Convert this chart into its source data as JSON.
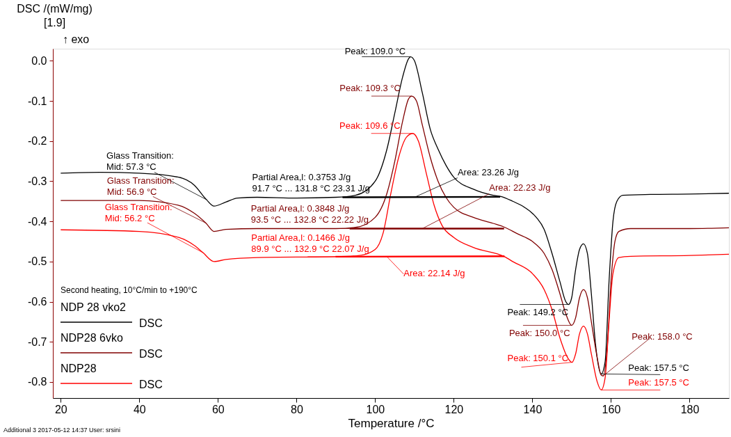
{
  "chart_data": {
    "type": "line",
    "xlabel": "Temperature /°C",
    "ylabel": "DSC /(mW/mg)\n[1.9]",
    "xlim": [
      18,
      190
    ],
    "ylim": [
      -0.84,
      0.03
    ],
    "xticks": [
      20,
      40,
      60,
      80,
      100,
      120,
      140,
      160,
      180
    ],
    "yticks": [
      {
        "value": 0,
        "label": "0.0"
      },
      -0.1,
      -0.2,
      -0.3,
      -0.4,
      -0.5,
      -0.6,
      -0.7,
      -0.8
    ],
    "legend_title": "Second heating, 10°C/min to +190°C",
    "series": [
      {
        "name": "NDP 28 vko2\nDSC",
        "color": "#000000",
        "x": [
          20,
          30,
          40,
          50,
          54,
          57,
          59,
          62,
          65,
          70,
          80,
          90,
          95,
          100,
          103,
          105,
          107,
          108.5,
          109,
          110,
          112,
          114,
          116,
          118,
          120,
          125,
          130,
          132,
          135,
          138,
          141,
          143,
          145,
          147,
          148.5,
          149.2,
          150,
          151,
          152,
          153,
          154,
          155,
          156,
          157.5,
          158.5,
          159.5,
          160.5,
          161.5,
          163,
          170,
          180,
          190
        ],
        "values": [
          -0.28,
          -0.278,
          -0.28,
          -0.29,
          -0.31,
          -0.345,
          -0.362,
          -0.352,
          -0.342,
          -0.34,
          -0.342,
          -0.34,
          -0.335,
          -0.3,
          -0.22,
          -0.13,
          -0.04,
          0.005,
          0.01,
          0.0,
          -0.08,
          -0.17,
          -0.22,
          -0.26,
          -0.29,
          -0.32,
          -0.335,
          -0.338,
          -0.35,
          -0.365,
          -0.39,
          -0.42,
          -0.48,
          -0.55,
          -0.6,
          -0.607,
          -0.59,
          -0.52,
          -0.47,
          -0.456,
          -0.48,
          -0.58,
          -0.7,
          -0.78,
          -0.75,
          -0.55,
          -0.4,
          -0.35,
          -0.335,
          -0.333,
          -0.332,
          -0.33
        ]
      },
      {
        "name": "NDP28 6vko\nDSC",
        "color": "#800000",
        "x": [
          20,
          40,
          50,
          54,
          57,
          59,
          62,
          70,
          90,
          95,
          100,
          103,
          105,
          107,
          108.5,
          109.3,
          110.5,
          112,
          114,
          116,
          118,
          120,
          125,
          130,
          133,
          136,
          140,
          143,
          145,
          147,
          148.5,
          150,
          151,
          152,
          153,
          154,
          155,
          156.5,
          157.5,
          158,
          159,
          160,
          161,
          162,
          165,
          180,
          190
        ],
        "values": [
          -0.348,
          -0.348,
          -0.36,
          -0.38,
          -0.405,
          -0.425,
          -0.42,
          -0.418,
          -0.418,
          -0.415,
          -0.39,
          -0.33,
          -0.25,
          -0.15,
          -0.095,
          -0.088,
          -0.1,
          -0.16,
          -0.24,
          -0.3,
          -0.34,
          -0.365,
          -0.39,
          -0.405,
          -0.415,
          -0.43,
          -0.45,
          -0.48,
          -0.52,
          -0.58,
          -0.63,
          -0.659,
          -0.64,
          -0.59,
          -0.57,
          -0.59,
          -0.65,
          -0.74,
          -0.783,
          -0.785,
          -0.72,
          -0.55,
          -0.45,
          -0.425,
          -0.418,
          -0.418,
          -0.416
        ]
      },
      {
        "name": "NDP28\nDSC",
        "color": "#ff0000",
        "x": [
          20,
          40,
          50,
          54,
          56.2,
          59,
          62,
          70,
          90,
          96,
          100,
          102,
          104,
          106,
          108,
          109.6,
          111,
          113,
          115,
          117,
          120,
          125,
          132.9,
          135,
          140,
          143,
          145,
          147,
          149,
          150.1,
          151,
          152,
          153,
          154,
          155,
          156.5,
          157.5,
          158.5,
          159.5,
          160.5,
          162,
          165,
          180,
          190
        ],
        "values": [
          -0.421,
          -0.425,
          -0.44,
          -0.46,
          -0.478,
          -0.5,
          -0.495,
          -0.49,
          -0.488,
          -0.485,
          -0.47,
          -0.43,
          -0.33,
          -0.24,
          -0.19,
          -0.181,
          -0.2,
          -0.28,
          -0.36,
          -0.41,
          -0.44,
          -0.465,
          -0.488,
          -0.5,
          -0.53,
          -0.57,
          -0.62,
          -0.69,
          -0.74,
          -0.751,
          -0.73,
          -0.68,
          -0.661,
          -0.68,
          -0.73,
          -0.8,
          -0.82,
          -0.79,
          -0.65,
          -0.53,
          -0.49,
          -0.487,
          -0.485,
          -0.482
        ]
      },
      {
        "type": "line",
        "color": "#000000",
        "x": [
          91.7,
          131.8
        ],
        "values": [
          -0.34,
          -0.339
        ]
      },
      {
        "type": "line",
        "color": "#800000",
        "x": [
          93.5,
          132.8
        ],
        "values": [
          -0.418,
          -0.418
        ]
      },
      {
        "type": "line",
        "color": "#ff0000",
        "x": [
          89.9,
          132.9
        ],
        "values": [
          -0.488,
          -0.487
        ]
      }
    ],
    "annotations": [
      {
        "text": "Peak: 109.0 °C",
        "x": 109.0,
        "y": 0.01
      },
      {
        "text": "Peak: 109.3 °C",
        "x": 109.3,
        "y": -0.088
      },
      {
        "text": "Peak: 109.6 °C",
        "x": 109.6,
        "y": -0.181
      },
      {
        "text": "Glass Transition:\nMid: 57.3 °C",
        "x": 57.3,
        "y": -0.347
      },
      {
        "text": "Glass Transition:\nMid: 56.9 °C",
        "x": 56.9,
        "y": -0.404
      },
      {
        "text": "Glass Transition:\nMid: 56.2 °C",
        "x": 56.2,
        "y": -0.478
      },
      {
        "text": "Partial Area,l:            0.3753 J/g\n91.7 °C ... 131.8 °C 23.31 J/g",
        "x": 91.7,
        "y": -0.34
      },
      {
        "text": "Partial Area,l:            0.3848 J/g\n93.5 °C ... 132.8 °C 22.22 J/g",
        "x": 93.5,
        "y": -0.418
      },
      {
        "text": "Partial Area,l:            0.1466 J/g\n89.9 °C ... 132.9 °C 22.07 J/g",
        "x": 89.9,
        "y": -0.488
      },
      {
        "text": "Area: 23.26 J/g",
        "x": 110,
        "y": -0.34
      },
      {
        "text": "Area: 22.23 J/g",
        "x": 112,
        "y": -0.418
      },
      {
        "text": "Area: 22.14 J/g",
        "x": 103,
        "y": -0.488
      },
      {
        "text": "Peak: 149.2 °C",
        "x": 149.2,
        "y": -0.607
      },
      {
        "text": "Peak: 150.0 °C",
        "x": 150.0,
        "y": -0.659
      },
      {
        "text": "Peak: 150.1 °C",
        "x": 150.1,
        "y": -0.751
      },
      {
        "text": "Peak: 158.0 °C",
        "x": 158.0,
        "y": -0.785
      },
      {
        "text": "Peak: 157.5 °C",
        "x": 157.5,
        "y": -0.78
      },
      {
        "text": "Peak: 157.5 °C",
        "x": 157.5,
        "y": -0.82
      },
      "↑ exo",
      "Additional 3   2017-05-12 14:37   User: srsini"
    ]
  }
}
